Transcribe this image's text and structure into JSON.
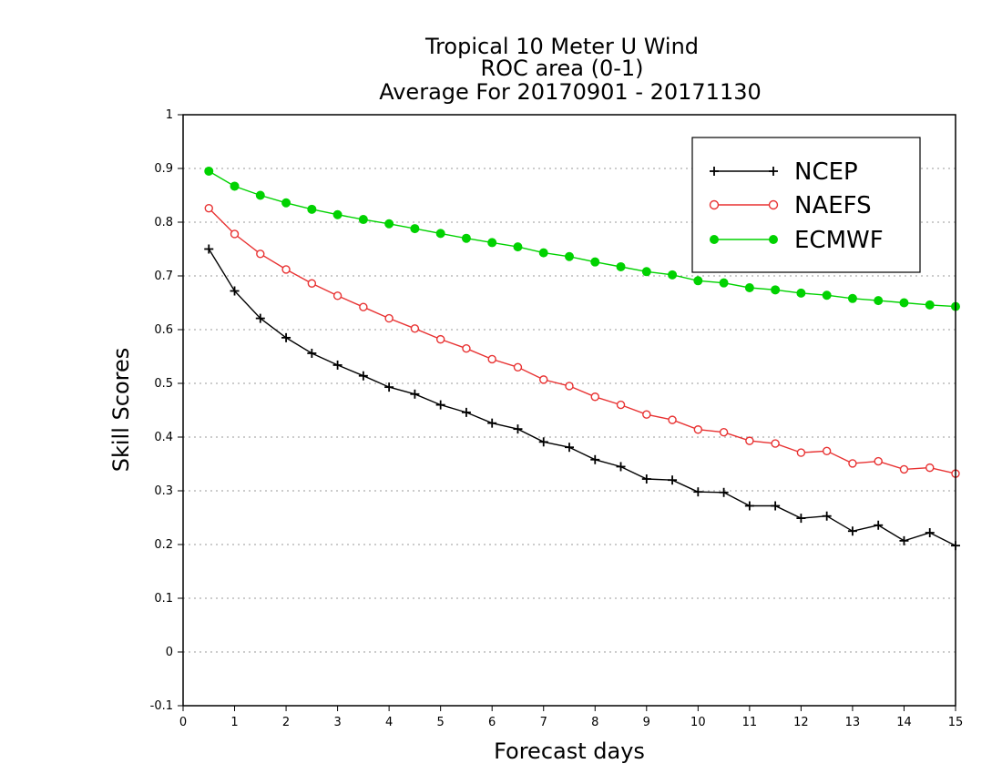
{
  "chart_data": {
    "type": "line",
    "title_lines": [
      "Tropical 10 Meter U Wind",
      "ROC area (0-1)",
      "Average For 20170901 - 20171130"
    ],
    "xlabel": "Forecast days",
    "ylabel": "Skill Scores",
    "xlim": [
      0,
      15
    ],
    "ylim": [
      -0.1,
      1
    ],
    "xticks": [
      0,
      1,
      2,
      3,
      4,
      5,
      6,
      7,
      8,
      9,
      10,
      11,
      12,
      13,
      14,
      15
    ],
    "yticks": [
      -0.1,
      0,
      0.1,
      0.2,
      0.3,
      0.4,
      0.5,
      0.6,
      0.7,
      0.8,
      0.9,
      1
    ],
    "ytick_labels": [
      "-0.1",
      "0",
      "0.1",
      "0.2",
      "0.3",
      "0.4",
      "0.5",
      "0.6",
      "0.7",
      "0.8",
      "0.9",
      "1"
    ],
    "grid": "horizontal dotted",
    "legend_position": "top-right",
    "x": [
      0.5,
      1,
      1.5,
      2,
      2.5,
      3,
      3.5,
      4,
      4.5,
      5,
      5.5,
      6,
      6.5,
      7,
      7.5,
      8,
      8.5,
      9,
      9.5,
      10,
      10.5,
      11,
      11.5,
      12,
      12.5,
      13,
      13.5,
      14,
      14.5,
      15
    ],
    "series": [
      {
        "name": "NCEP",
        "color": "#000000",
        "marker": "plus",
        "values": [
          0.75,
          0.672,
          0.621,
          0.585,
          0.556,
          0.534,
          0.514,
          0.493,
          0.48,
          0.46,
          0.446,
          0.426,
          0.415,
          0.391,
          0.381,
          0.358,
          0.345,
          0.322,
          0.32,
          0.298,
          0.297,
          0.272,
          0.272,
          0.249,
          0.253,
          0.225,
          0.236,
          0.207,
          0.222,
          0.198
        ]
      },
      {
        "name": "NAEFS",
        "color": "#e83232",
        "marker": "open-circle",
        "values": [
          0.826,
          0.778,
          0.741,
          0.712,
          0.686,
          0.663,
          0.642,
          0.621,
          0.602,
          0.582,
          0.565,
          0.545,
          0.53,
          0.507,
          0.495,
          0.475,
          0.46,
          0.442,
          0.432,
          0.414,
          0.409,
          0.393,
          0.388,
          0.371,
          0.374,
          0.351,
          0.355,
          0.34,
          0.343,
          0.332
        ]
      },
      {
        "name": "ECMWF",
        "color": "#00d200",
        "marker": "filled-circle",
        "values": [
          0.895,
          0.867,
          0.85,
          0.836,
          0.824,
          0.814,
          0.805,
          0.797,
          0.788,
          0.779,
          0.77,
          0.762,
          0.754,
          0.743,
          0.736,
          0.726,
          0.717,
          0.708,
          0.702,
          0.691,
          0.687,
          0.678,
          0.674,
          0.668,
          0.664,
          0.658,
          0.654,
          0.65,
          0.646,
          0.643
        ]
      }
    ]
  }
}
